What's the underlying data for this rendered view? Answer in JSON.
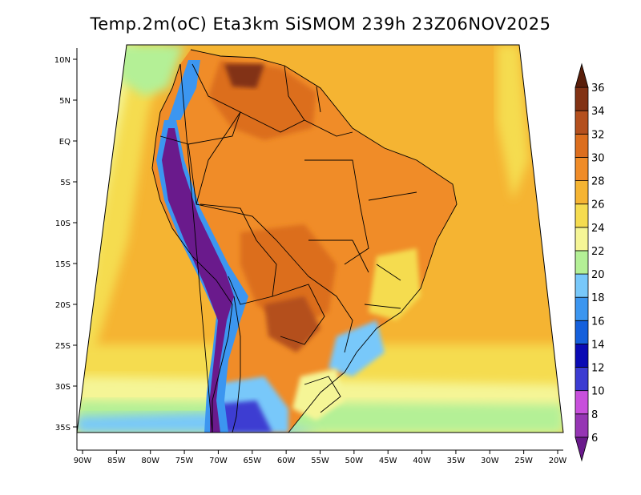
{
  "title": "Temp.2m(oC) Eta3km SiSMOM 239h 23Z06NOV2025",
  "colorbar": {
    "levels": [
      6,
      8,
      10,
      12,
      14,
      16,
      18,
      20,
      22,
      24,
      26,
      28,
      30,
      32,
      34,
      36
    ],
    "colors": [
      "#6a1a8c",
      "#9636b4",
      "#c850dc",
      "#3c3cd2",
      "#0a0ab4",
      "#1560dc",
      "#3c96f0",
      "#78c8fa",
      "#b4f096",
      "#f5f596",
      "#f5dc50",
      "#f5b432",
      "#f08c28",
      "#dc6e1e",
      "#b4501e",
      "#823214",
      "#5a1e0a"
    ],
    "labels": [
      "6",
      "8",
      "10",
      "12",
      "14",
      "16",
      "18",
      "20",
      "22",
      "24",
      "26",
      "28",
      "30",
      "32",
      "34",
      "36"
    ]
  },
  "axes": {
    "lon_labels": [
      "90W",
      "85W",
      "80W",
      "75W",
      "70W",
      "65W",
      "60W",
      "55W",
      "50W",
      "45W",
      "40W",
      "35W",
      "30W",
      "25W",
      "20W"
    ],
    "lat_labels": [
      "10N",
      "5N",
      "EQ",
      "5S",
      "10S",
      "15S",
      "20S",
      "25S",
      "30S",
      "35S"
    ],
    "lon_range": [
      -90.5,
      -19.5
    ],
    "lat_range": [
      -38,
      11
    ]
  },
  "colors": {
    "ocean_warm": "#f5b432",
    "ocean_mild": "#f5dc50",
    "ocean_cool": "#f5f596",
    "ocean_cold": "#b4f096",
    "ocean_colder": "#78c8fa",
    "land_hot": "#f08c28",
    "land_veryhot": "#dc6e1e",
    "andes_cold": "#6a1a8c",
    "andes_cool": "#3c3cd2",
    "border": "#000000"
  }
}
